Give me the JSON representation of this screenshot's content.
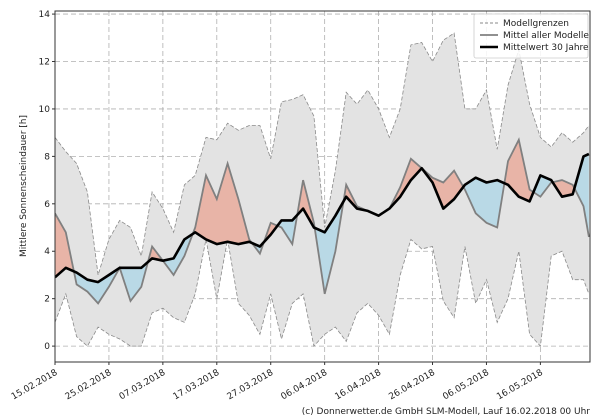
{
  "chart_data": {
    "type": "area",
    "ylabel": "Mittlere Sonnenscheindauer [h]",
    "xlabel": "",
    "ylim": [
      -0.67,
      14.13
    ],
    "xlim_days": [
      0,
      99.2
    ],
    "x_start": "15.02.2018",
    "day_step": 2,
    "grid": true,
    "legend_position": "top-right",
    "yticks": [
      0,
      2,
      4,
      6,
      8,
      10,
      12,
      14
    ],
    "xticks": [
      {
        "day": 0,
        "label": "15.02.2018"
      },
      {
        "day": 10,
        "label": "25.02.2018"
      },
      {
        "day": 20,
        "label": "07.03.2018"
      },
      {
        "day": 30,
        "label": "17.03.2018"
      },
      {
        "day": 40,
        "label": "27.03.2018"
      },
      {
        "day": 50,
        "label": "06.04.2018"
      },
      {
        "day": 60,
        "label": "16.04.2018"
      },
      {
        "day": 70,
        "label": "26.04.2018"
      },
      {
        "day": 80,
        "label": "06.05.2018"
      },
      {
        "day": 90,
        "label": "16.05.2018"
      }
    ],
    "days": [
      0,
      2,
      4,
      6,
      8,
      10,
      12,
      14,
      16,
      18,
      20,
      22,
      24,
      26,
      28,
      30,
      32,
      34,
      36,
      38,
      40,
      42,
      44,
      46,
      48,
      50,
      52,
      54,
      56,
      58,
      60,
      62,
      64,
      66,
      68,
      70,
      72,
      74,
      76,
      78,
      80,
      82,
      84,
      86,
      88,
      90,
      92,
      94,
      96,
      98,
      99
    ],
    "series": [
      {
        "name": "Modellgrenzen (oben)",
        "values": [
          8.8,
          8.2,
          7.7,
          6.5,
          3.0,
          4.5,
          5.3,
          5.0,
          3.8,
          6.5,
          5.8,
          4.8,
          6.8,
          7.2,
          8.8,
          8.7,
          9.4,
          9.1,
          9.3,
          9.3,
          7.9,
          10.3,
          10.4,
          10.6,
          9.7,
          5.0,
          7.4,
          10.7,
          10.2,
          10.8,
          10.0,
          8.8,
          10.0,
          12.7,
          12.8,
          12.0,
          12.9,
          13.2,
          10.0,
          10.0,
          10.8,
          8.3,
          11.0,
          12.5,
          10.2,
          8.8,
          8.4,
          9.0,
          8.6,
          9.0,
          9.3
        ]
      },
      {
        "name": "Modellgrenzen (unten)",
        "values": [
          1.0,
          2.2,
          0.4,
          0.0,
          0.8,
          0.5,
          0.3,
          0.0,
          0.0,
          1.4,
          1.6,
          1.2,
          1.0,
          2.2,
          4.5,
          2.0,
          4.5,
          1.8,
          1.3,
          0.5,
          2.2,
          0.3,
          1.8,
          2.2,
          0.0,
          0.5,
          0.8,
          0.2,
          1.4,
          1.8,
          1.3,
          0.5,
          3.0,
          4.5,
          4.1,
          4.2,
          1.9,
          1.2,
          4.2,
          1.8,
          2.8,
          1.0,
          2.0,
          4.0,
          0.5,
          0.0,
          3.8,
          4.0,
          2.8,
          2.8,
          2.2
        ]
      },
      {
        "name": "Mittel aller Modelle",
        "values": [
          5.6,
          4.8,
          2.6,
          2.3,
          1.8,
          2.5,
          3.3,
          1.9,
          2.5,
          4.2,
          3.6,
          3.0,
          3.8,
          5.0,
          7.2,
          6.2,
          7.7,
          6.2,
          4.5,
          3.9,
          5.2,
          5.0,
          4.3,
          7.0,
          5.2,
          2.2,
          4.0,
          6.8,
          5.9,
          5.7,
          5.5,
          5.8,
          6.7,
          7.9,
          7.5,
          7.1,
          6.9,
          7.4,
          6.6,
          5.6,
          5.2,
          5.0,
          7.8,
          8.7,
          6.6,
          6.3,
          6.9,
          7.0,
          6.8,
          5.9,
          4.6
        ]
      },
      {
        "name": "Mittelwert 30 Jahre",
        "values": [
          2.9,
          3.3,
          3.1,
          2.8,
          2.7,
          3.0,
          3.3,
          3.3,
          3.3,
          3.7,
          3.6,
          3.7,
          4.5,
          4.8,
          4.5,
          4.3,
          4.4,
          4.3,
          4.4,
          4.2,
          4.7,
          5.3,
          5.3,
          5.8,
          5.0,
          4.8,
          5.5,
          6.3,
          5.8,
          5.7,
          5.5,
          5.8,
          6.3,
          7.0,
          7.5,
          6.9,
          5.8,
          6.2,
          6.8,
          7.1,
          6.9,
          7.0,
          6.8,
          6.3,
          6.1,
          7.2,
          7.0,
          6.3,
          6.4,
          8.0,
          8.1
        ]
      }
    ],
    "legend": [
      "Modellgrenzen",
      "Mittel aller Modelle",
      "Mittelwert 30 Jahre"
    ],
    "colors": {
      "band": "#e3e3e3",
      "above": "#e8b4a7",
      "below": "#b9d9e6",
      "mean": "#808080",
      "climate": "#000000"
    }
  },
  "footer": "(c) Donnerwetter.de GmbH SLM-Modell, Lauf 16.02.2018 00 Uhr"
}
